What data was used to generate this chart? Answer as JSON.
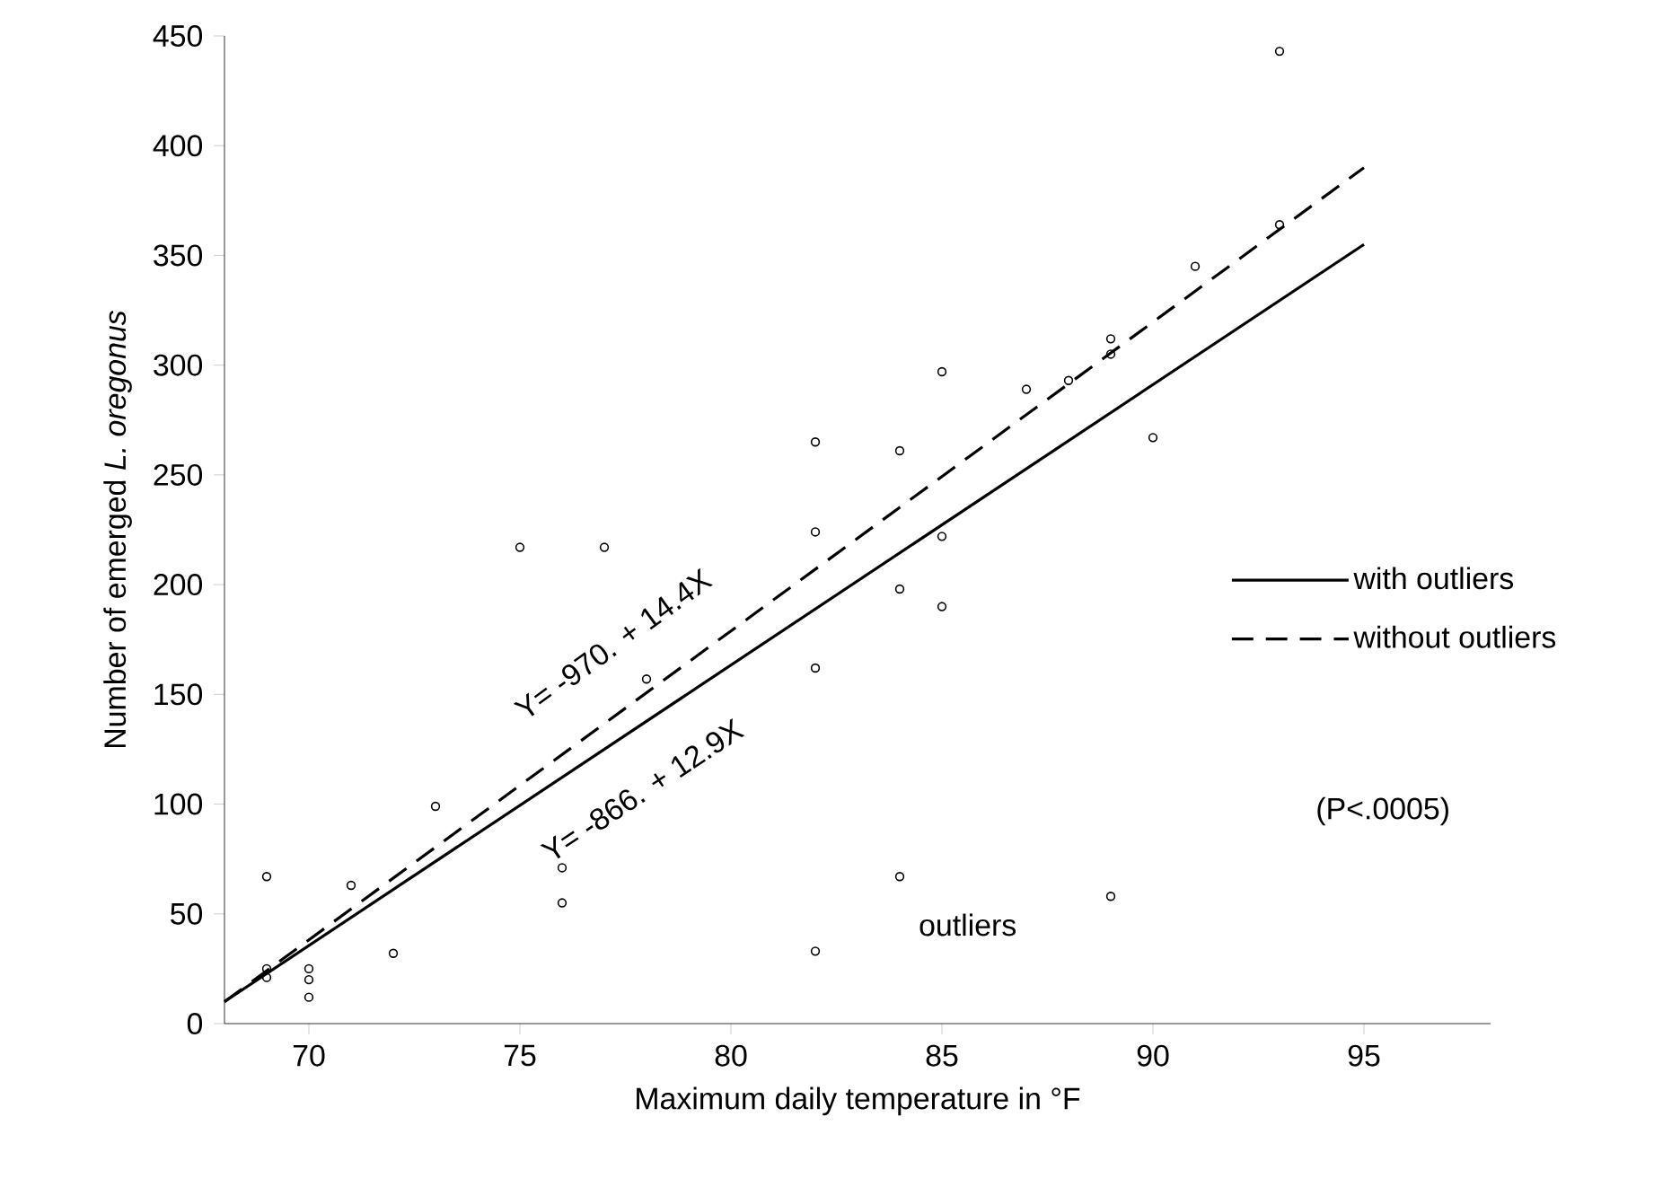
{
  "chart_data": {
    "type": "scatter",
    "xlabel": "Maximum daily temperature in °F",
    "ylabel": "Number of emerged *L. oregonus*",
    "xlim": [
      68,
      98
    ],
    "ylim": [
      0,
      450
    ],
    "xticks": [
      70,
      75,
      80,
      85,
      90,
      95
    ],
    "yticks": [
      0,
      50,
      100,
      150,
      200,
      250,
      300,
      350,
      400,
      450
    ],
    "legend": "right",
    "series": [
      {
        "marker": "circle",
        "color": "#000000",
        "x": [
          69,
          69,
          69,
          70,
          70,
          70,
          71,
          72,
          73,
          75,
          76,
          76,
          77,
          78,
          82,
          82,
          82,
          82,
          84,
          84,
          84,
          85,
          85,
          85,
          87,
          88,
          89,
          89,
          89,
          90,
          91,
          93,
          93
        ],
        "values": [
          67,
          21,
          25,
          25,
          20,
          12,
          63,
          32,
          99,
          217,
          71,
          55,
          217,
          157,
          265,
          224,
          162,
          33,
          261,
          198,
          67,
          297,
          222,
          190,
          289,
          293,
          312,
          305,
          58,
          267,
          345,
          443,
          364
        ]
      },
      {
        "type": "line",
        "marker": "none",
        "name": "with outliers",
        "color": "#000000",
        "line_style": "solid",
        "x": [
          68,
          95
        ],
        "values": [
          10,
          355
        ]
      },
      {
        "type": "line",
        "marker": "none",
        "name": "without outliers",
        "color": "#000000",
        "line_style": "dashed",
        "x": [
          68,
          95
        ],
        "values": [
          10,
          390
        ]
      }
    ],
    "annotations": [
      "Y= -970. + 14.4X",
      "Y= -866. + 12.9X",
      "outliers",
      "(P<.0005)"
    ]
  }
}
